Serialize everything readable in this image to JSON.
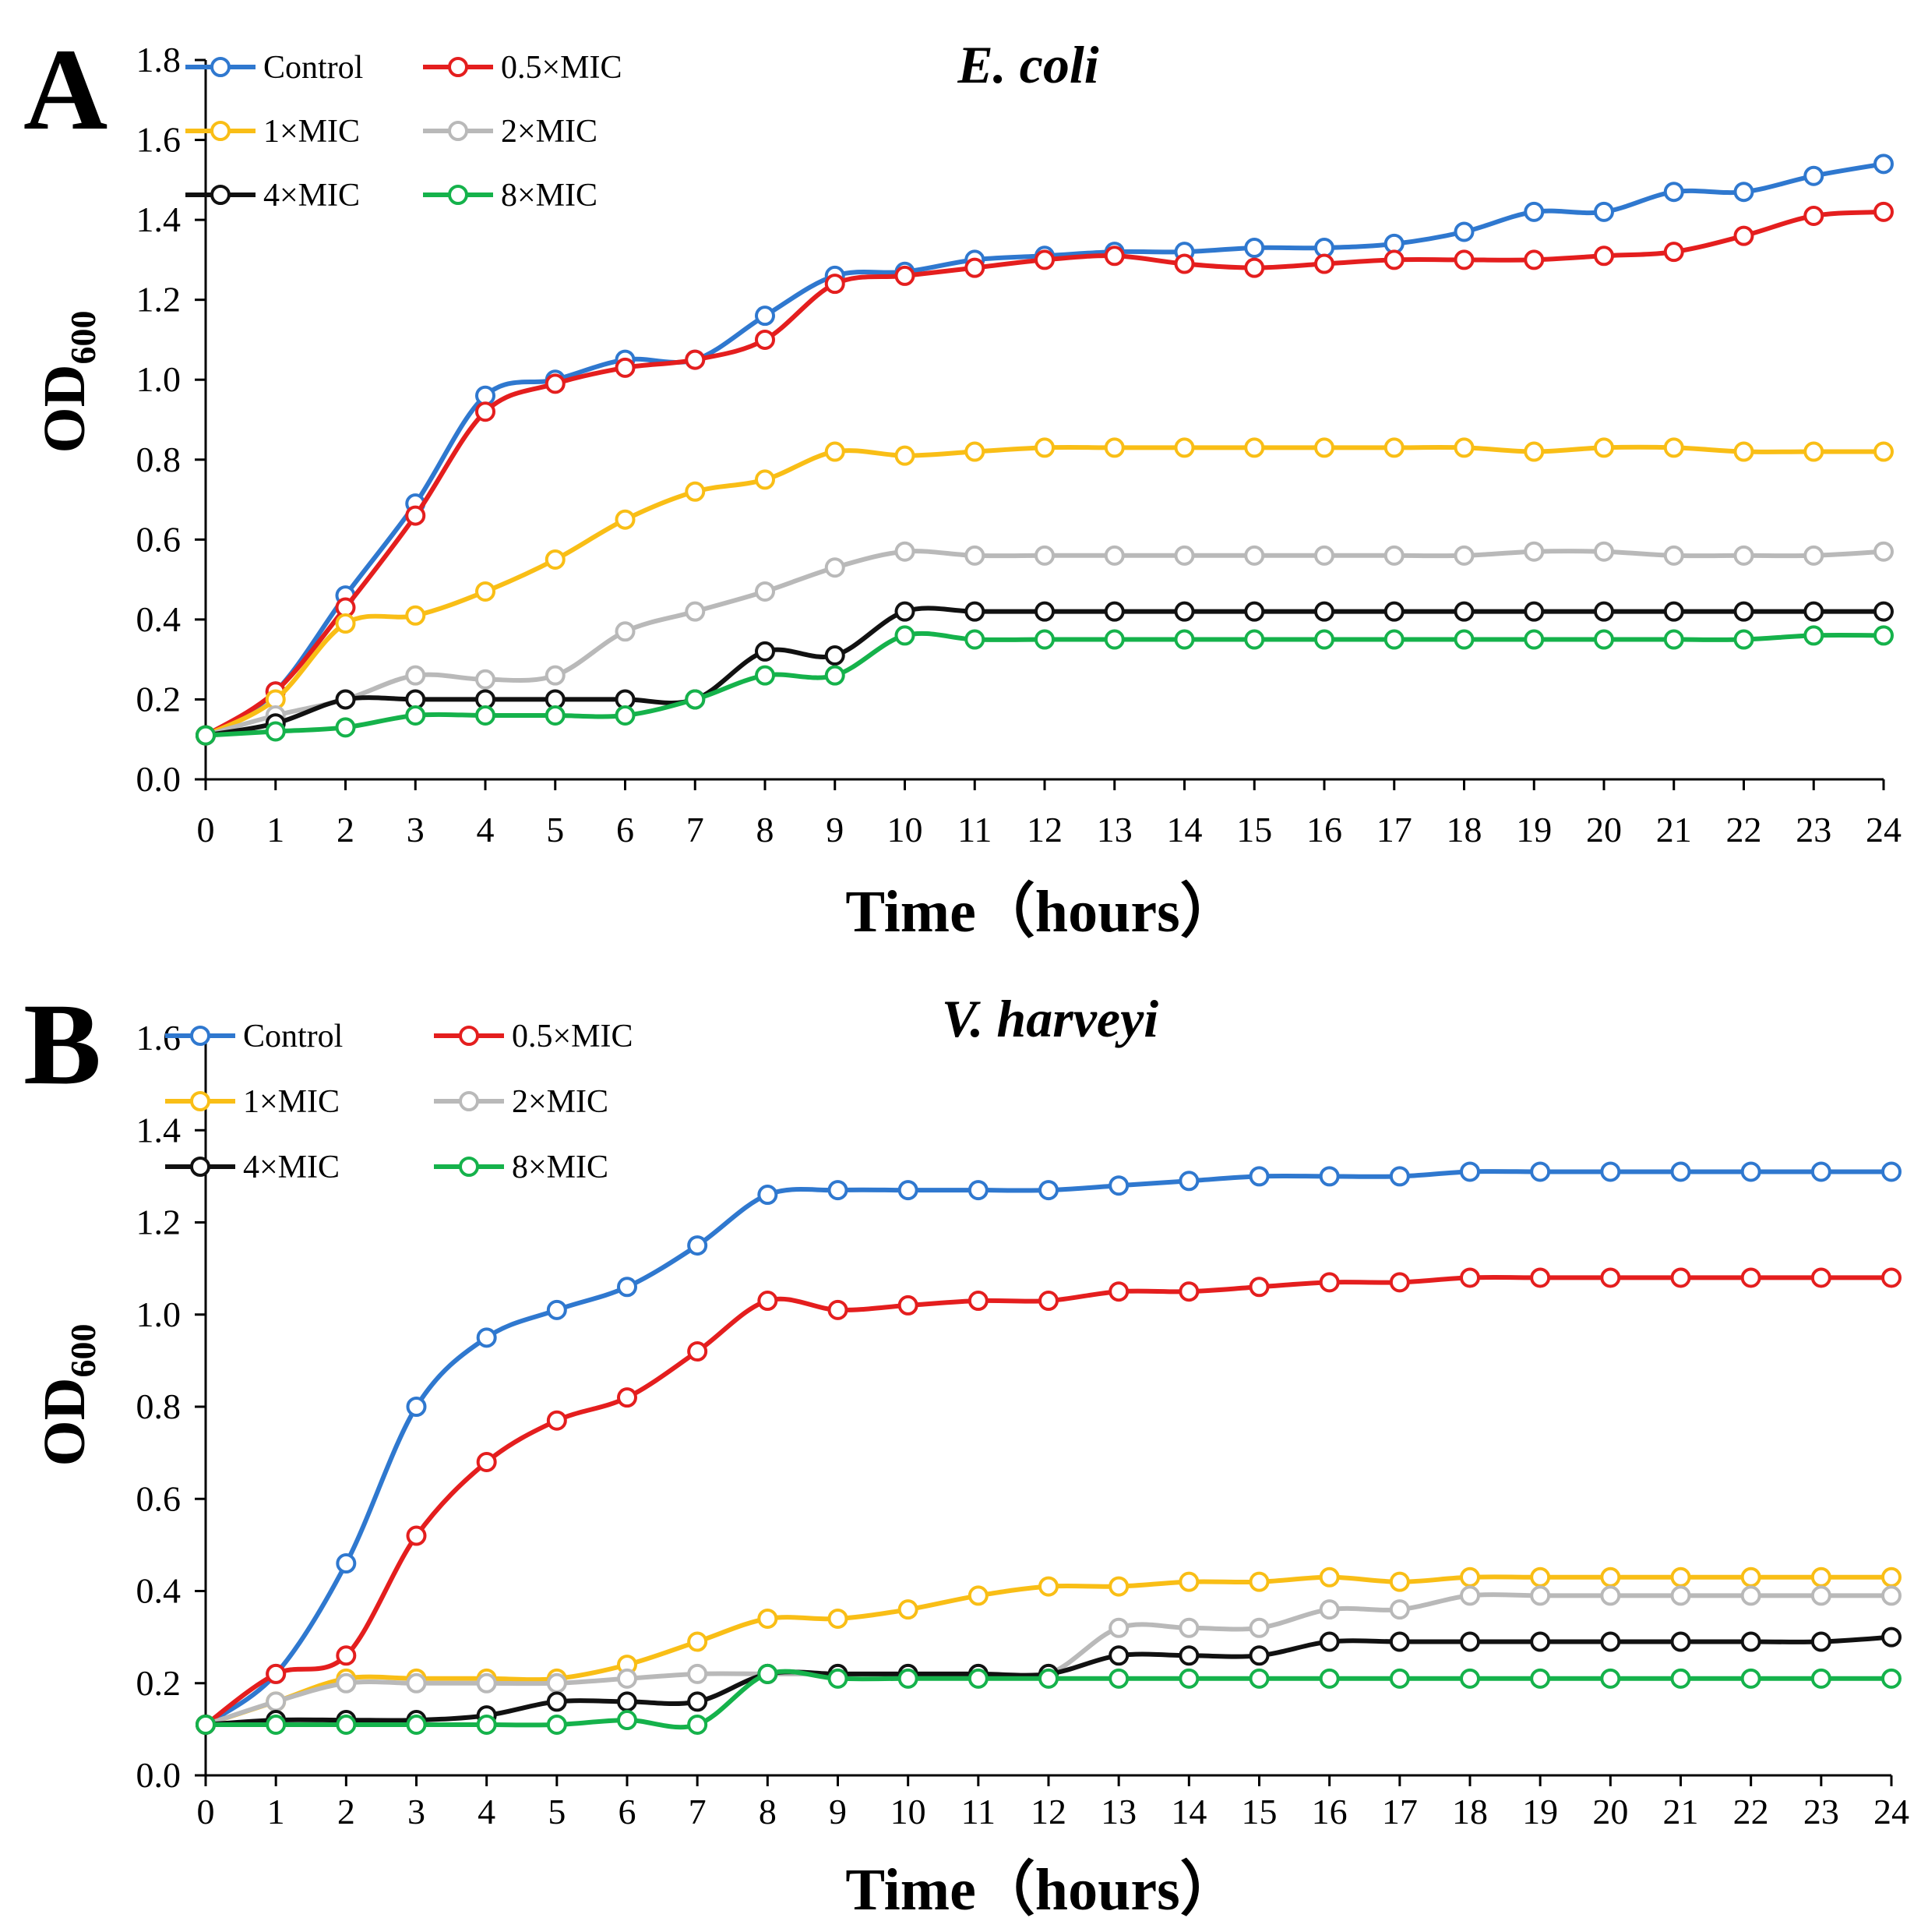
{
  "chart_data": [
    {
      "type": "line",
      "panel_label": "A",
      "title": "E. coli",
      "ylabel": "OD",
      "ylabel_sub": "600",
      "xlabel": "Time（hours）",
      "xlim": [
        0,
        24
      ],
      "ylim": [
        0,
        1.8
      ],
      "yticks": [
        "0.0",
        "0.2",
        "0.4",
        "0.6",
        "0.8",
        "1.0",
        "1.2",
        "1.4",
        "1.6",
        "1.8"
      ],
      "x": [
        0,
        1,
        2,
        3,
        4,
        5,
        6,
        7,
        8,
        9,
        10,
        11,
        12,
        13,
        14,
        15,
        16,
        17,
        18,
        19,
        20,
        21,
        22,
        23,
        24
      ],
      "xticks": [
        "0",
        "1",
        "2",
        "3",
        "4",
        "5",
        "6",
        "7",
        "8",
        "9",
        "10",
        "11",
        "12",
        "13",
        "14",
        "15",
        "16",
        "17",
        "18",
        "19",
        "20",
        "21",
        "22",
        "23",
        "24"
      ],
      "legend_position": "top-left",
      "series": [
        {
          "name": "Control",
          "color": "#2F78CF",
          "values": [
            0.11,
            0.22,
            0.46,
            0.69,
            0.96,
            1.0,
            1.05,
            1.05,
            1.16,
            1.26,
            1.27,
            1.3,
            1.31,
            1.32,
            1.32,
            1.33,
            1.33,
            1.34,
            1.37,
            1.42,
            1.42,
            1.47,
            1.47,
            1.51,
            1.54
          ]
        },
        {
          "name": "0.5×MIC",
          "color": "#E41E1E",
          "values": [
            0.11,
            0.22,
            0.43,
            0.66,
            0.92,
            0.99,
            1.03,
            1.05,
            1.1,
            1.24,
            1.26,
            1.28,
            1.3,
            1.31,
            1.29,
            1.28,
            1.29,
            1.3,
            1.3,
            1.3,
            1.31,
            1.32,
            1.36,
            1.41,
            1.42
          ]
        },
        {
          "name": "1×MIC",
          "color": "#F9BE16",
          "values": [
            0.11,
            0.2,
            0.39,
            0.41,
            0.47,
            0.55,
            0.65,
            0.72,
            0.75,
            0.82,
            0.81,
            0.82,
            0.83,
            0.83,
            0.83,
            0.83,
            0.83,
            0.83,
            0.83,
            0.82,
            0.83,
            0.83,
            0.82,
            0.82,
            0.82
          ]
        },
        {
          "name": "2×MIC",
          "color": "#B9B9B9",
          "values": [
            0.11,
            0.16,
            0.2,
            0.26,
            0.25,
            0.26,
            0.37,
            0.42,
            0.47,
            0.53,
            0.57,
            0.56,
            0.56,
            0.56,
            0.56,
            0.56,
            0.56,
            0.56,
            0.56,
            0.57,
            0.57,
            0.56,
            0.56,
            0.56,
            0.57
          ]
        },
        {
          "name": "4×MIC",
          "color": "#111111",
          "values": [
            0.11,
            0.14,
            0.2,
            0.2,
            0.2,
            0.2,
            0.2,
            0.2,
            0.32,
            0.31,
            0.42,
            0.42,
            0.42,
            0.42,
            0.42,
            0.42,
            0.42,
            0.42,
            0.42,
            0.42,
            0.42,
            0.42,
            0.42,
            0.42,
            0.42
          ]
        },
        {
          "name": "8×MIC",
          "color": "#15B24B",
          "values": [
            0.11,
            0.12,
            0.13,
            0.16,
            0.16,
            0.16,
            0.16,
            0.2,
            0.26,
            0.26,
            0.36,
            0.35,
            0.35,
            0.35,
            0.35,
            0.35,
            0.35,
            0.35,
            0.35,
            0.35,
            0.35,
            0.35,
            0.35,
            0.36,
            0.36
          ]
        }
      ]
    },
    {
      "type": "line",
      "panel_label": "B",
      "title": "V. harveyi",
      "ylabel": "OD",
      "ylabel_sub": "600",
      "xlabel": "Time（hours）",
      "xlim": [
        0,
        24
      ],
      "ylim": [
        0,
        1.6
      ],
      "yticks": [
        "0.0",
        "0.2",
        "0.4",
        "0.6",
        "0.8",
        "1.0",
        "1.2",
        "1.4",
        "1.6"
      ],
      "x": [
        0,
        1,
        2,
        3,
        4,
        5,
        6,
        7,
        8,
        9,
        10,
        11,
        12,
        13,
        14,
        15,
        16,
        17,
        18,
        19,
        20,
        21,
        22,
        23,
        24
      ],
      "xticks": [
        "0",
        "1",
        "2",
        "3",
        "4",
        "5",
        "6",
        "7",
        "8",
        "9",
        "10",
        "11",
        "12",
        "13",
        "14",
        "15",
        "16",
        "17",
        "18",
        "19",
        "20",
        "21",
        "22",
        "23",
        "24"
      ],
      "legend_position": "top-left",
      "series": [
        {
          "name": "Control",
          "color": "#2F78CF",
          "values": [
            0.11,
            0.22,
            0.46,
            0.8,
            0.95,
            1.01,
            1.06,
            1.15,
            1.26,
            1.27,
            1.27,
            1.27,
            1.27,
            1.28,
            1.29,
            1.3,
            1.3,
            1.3,
            1.31,
            1.31,
            1.31,
            1.31,
            1.31,
            1.31,
            1.31
          ]
        },
        {
          "name": "0.5×MIC",
          "color": "#E41E1E",
          "values": [
            0.11,
            0.22,
            0.26,
            0.52,
            0.68,
            0.77,
            0.82,
            0.92,
            1.03,
            1.01,
            1.02,
            1.03,
            1.03,
            1.05,
            1.05,
            1.06,
            1.07,
            1.07,
            1.08,
            1.08,
            1.08,
            1.08,
            1.08,
            1.08,
            1.08
          ]
        },
        {
          "name": "1×MIC",
          "color": "#F9BE16",
          "values": [
            0.11,
            0.16,
            0.21,
            0.21,
            0.21,
            0.21,
            0.24,
            0.29,
            0.34,
            0.34,
            0.36,
            0.39,
            0.41,
            0.41,
            0.42,
            0.42,
            0.43,
            0.42,
            0.43,
            0.43,
            0.43,
            0.43,
            0.43,
            0.43,
            0.43
          ]
        },
        {
          "name": "2×MIC",
          "color": "#B9B9B9",
          "values": [
            0.11,
            0.16,
            0.2,
            0.2,
            0.2,
            0.2,
            0.21,
            0.22,
            0.22,
            0.22,
            0.22,
            0.22,
            0.22,
            0.32,
            0.32,
            0.32,
            0.36,
            0.36,
            0.39,
            0.39,
            0.39,
            0.39,
            0.39,
            0.39,
            0.39
          ]
        },
        {
          "name": "4×MIC",
          "color": "#111111",
          "values": [
            0.11,
            0.12,
            0.12,
            0.12,
            0.13,
            0.16,
            0.16,
            0.16,
            0.22,
            0.22,
            0.22,
            0.22,
            0.22,
            0.26,
            0.26,
            0.26,
            0.29,
            0.29,
            0.29,
            0.29,
            0.29,
            0.29,
            0.29,
            0.29,
            0.3
          ]
        },
        {
          "name": "8×MIC",
          "color": "#15B24B",
          "values": [
            0.11,
            0.11,
            0.11,
            0.11,
            0.11,
            0.11,
            0.12,
            0.11,
            0.22,
            0.21,
            0.21,
            0.21,
            0.21,
            0.21,
            0.21,
            0.21,
            0.21,
            0.21,
            0.21,
            0.21,
            0.21,
            0.21,
            0.21,
            0.21,
            0.21
          ]
        }
      ]
    }
  ]
}
